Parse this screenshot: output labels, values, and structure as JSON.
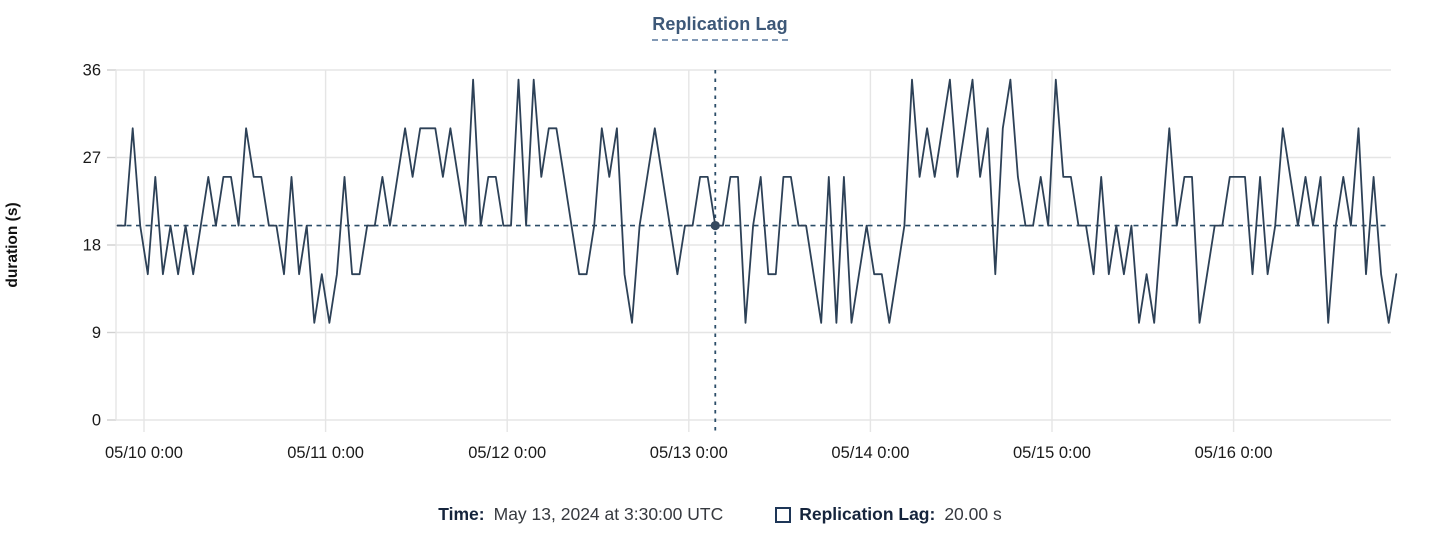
{
  "title": "Replication Lag",
  "y_axis_label": "duration (s)",
  "tooltip": {
    "time_label": "Time:",
    "time_value": "May 13, 2024 at 3:30:00 UTC",
    "series_label": "Replication Lag:",
    "series_value": "20.00 s"
  },
  "colors": {
    "line": "#2d4157",
    "crosshair": "#2b4d68",
    "grid": "#e5e5e5",
    "tick": "#d0d0d0",
    "tick_text": "#1a1a1a",
    "title": "#3d5878",
    "legend_label": "#15243c",
    "swatch_border": "#1e3657"
  },
  "chart_data": {
    "type": "line",
    "title": "Replication Lag",
    "xlabel": "",
    "ylabel": "duration (s)",
    "ylim": [
      0,
      36
    ],
    "yticks": [
      0,
      9,
      18,
      27,
      36
    ],
    "xticklabels": [
      "05/10 0:00",
      "05/11 0:00",
      "05/12 0:00",
      "05/13 0:00",
      "05/14 0:00",
      "05/15 0:00",
      "05/16 0:00"
    ],
    "grid": true,
    "legend_position": "bottom",
    "series_name": "Replication Lag",
    "units": "s",
    "sampling": "hourly at :30, starting 05/09 20:30",
    "start_offset_hours_from_first_tick": -3.5,
    "interval_hours": 1,
    "values": [
      20,
      20,
      30,
      20,
      15,
      25,
      15,
      20,
      15,
      20,
      15,
      20,
      25,
      20,
      25,
      25,
      20,
      30,
      25,
      25,
      20,
      20,
      15,
      25,
      15,
      20,
      10,
      15,
      10,
      15,
      25,
      15,
      15,
      20,
      20,
      25,
      20,
      25,
      30,
      25,
      30,
      30,
      30,
      25,
      30,
      25,
      20,
      35,
      20,
      25,
      25,
      20,
      20,
      35,
      20,
      35,
      25,
      30,
      30,
      25,
      20,
      15,
      15,
      20,
      30,
      25,
      30,
      15,
      10,
      20,
      25,
      30,
      25,
      20,
      15,
      20,
      20,
      25,
      25,
      20,
      20,
      25,
      25,
      10,
      20,
      25,
      15,
      15,
      25,
      25,
      20,
      20,
      15,
      10,
      25,
      10,
      25,
      10,
      15,
      20,
      15,
      15,
      10,
      15,
      20,
      35,
      25,
      30,
      25,
      30,
      35,
      25,
      30,
      35,
      25,
      30,
      15,
      30,
      35,
      25,
      20,
      20,
      25,
      20,
      35,
      25,
      25,
      20,
      20,
      15,
      25,
      15,
      20,
      15,
      20,
      10,
      15,
      10,
      20,
      30,
      20,
      25,
      25,
      10,
      15,
      20,
      20,
      25,
      25,
      25,
      15,
      25,
      15,
      20,
      30,
      25,
      20,
      25,
      20,
      25,
      10,
      20,
      25,
      20,
      30,
      15,
      25,
      15,
      10,
      15
    ],
    "crosshair": {
      "hours_from_first_tick": 75.5,
      "time": "May 13, 2024 at 3:30:00 UTC",
      "value": 20.0,
      "hline_y": 20
    }
  }
}
